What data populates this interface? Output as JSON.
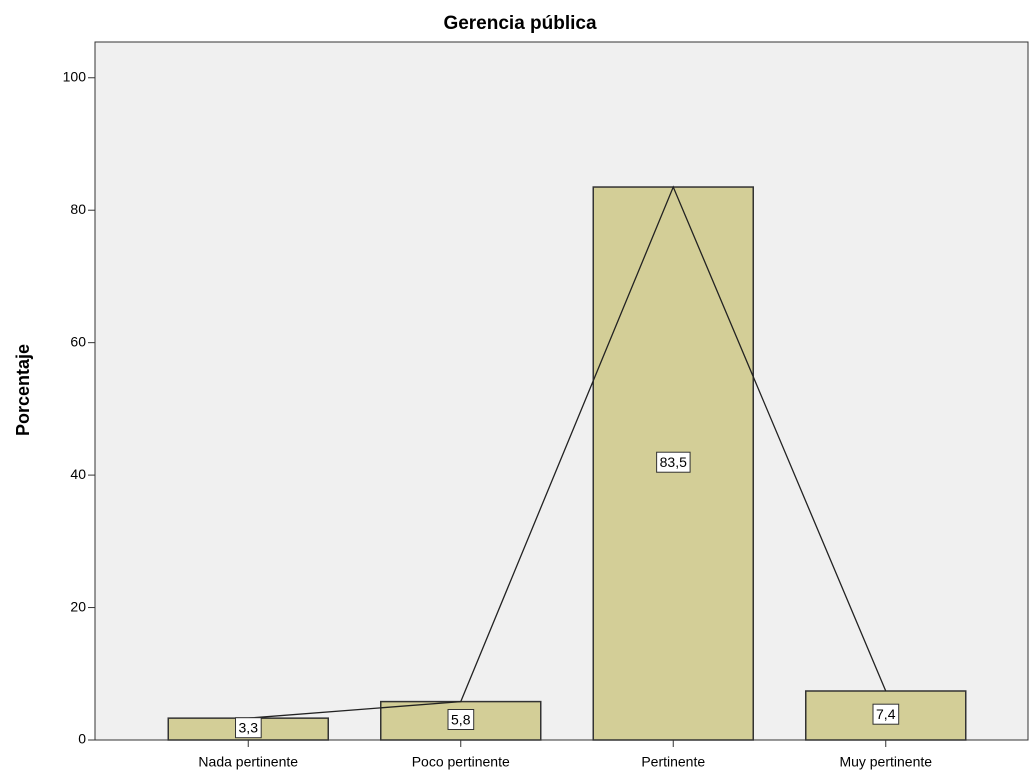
{
  "chart_data": {
    "type": "bar",
    "title": "Gerencia pública",
    "y_label": "Porcentaje",
    "categories": [
      "Nada pertinente",
      "Poco pertinente",
      "Pertinente",
      "Muy pertinente"
    ],
    "values": [
      3.3,
      5.8,
      83.5,
      7.4
    ],
    "value_labels": [
      "3,3",
      "5,8",
      "83,5",
      "7,4"
    ],
    "color": "#d3ce97",
    "line": true,
    "ylim": [
      0,
      105.4
    ],
    "yticks": [
      0,
      20,
      40,
      60,
      80,
      100
    ],
    "grid": false
  }
}
